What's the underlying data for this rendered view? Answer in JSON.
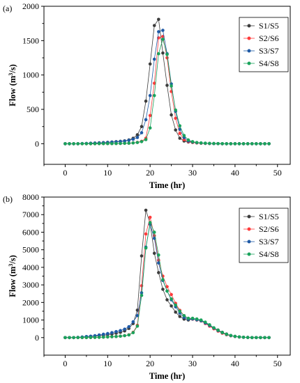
{
  "chart_data": [
    {
      "type": "line",
      "panel_label": "(a)",
      "xlabel": "Time (hr)",
      "ylabel_main": "Flow (m",
      "ylabel_sup": "3",
      "ylabel_end": "/s)",
      "xlim": [
        -5,
        53
      ],
      "ylim": [
        -300,
        2000
      ],
      "xticks": [
        0,
        10,
        20,
        30,
        40,
        50
      ],
      "yticks": [
        0,
        500,
        1000,
        1500,
        2000
      ],
      "xtick_labels": [
        "0",
        "10",
        "20",
        "30",
        "40",
        "50"
      ],
      "ytick_labels": [
        "0",
        "500",
        "1000",
        "1500",
        "2000"
      ],
      "legend_position": "top-right",
      "x": [
        0,
        1,
        2,
        3,
        4,
        5,
        6,
        7,
        8,
        9,
        10,
        11,
        12,
        13,
        14,
        15,
        16,
        17,
        18,
        19,
        20,
        21,
        22,
        23,
        24,
        25,
        26,
        27,
        28,
        29,
        30,
        31,
        32,
        33,
        34,
        35,
        36,
        37,
        38,
        39,
        40,
        41,
        42,
        43,
        44,
        45,
        46,
        47,
        48
      ],
      "series": [
        {
          "name": "S1/S5",
          "color": "#3c3c3c",
          "values": [
            0,
            0,
            0,
            0,
            2,
            4,
            7,
            10,
            13,
            16,
            20,
            25,
            30,
            35,
            42,
            55,
            80,
            130,
            250,
            620,
            1160,
            1720,
            1810,
            1320,
            850,
            420,
            200,
            80,
            40,
            25,
            18,
            12,
            8,
            5,
            3,
            2,
            1,
            0,
            0,
            0,
            0,
            0,
            0,
            0,
            0,
            0,
            0,
            0,
            0
          ]
        },
        {
          "name": "S2/S6",
          "color": "#ff3b3b",
          "values": [
            0,
            0,
            0,
            0,
            0,
            0,
            0,
            0,
            1,
            1,
            2,
            2,
            3,
            4,
            6,
            8,
            12,
            20,
            35,
            80,
            410,
            880,
            1540,
            1560,
            1250,
            760,
            370,
            150,
            60,
            30,
            20,
            12,
            8,
            5,
            3,
            2,
            1,
            0,
            0,
            0,
            0,
            0,
            0,
            0,
            0,
            0,
            0,
            0,
            0
          ]
        },
        {
          "name": "S3/S7",
          "color": "#1f5aa6",
          "values": [
            0,
            0,
            0,
            0,
            2,
            4,
            6,
            8,
            11,
            14,
            18,
            22,
            27,
            32,
            38,
            50,
            65,
            90,
            160,
            350,
            700,
            1230,
            1630,
            1650,
            1310,
            870,
            470,
            210,
            90,
            40,
            25,
            15,
            10,
            6,
            4,
            2,
            1,
            0,
            0,
            0,
            0,
            0,
            0,
            0,
            0,
            0,
            0,
            0,
            0
          ]
        },
        {
          "name": "S4/S8",
          "color": "#1aa35c",
          "values": [
            0,
            0,
            0,
            0,
            0,
            0,
            0,
            0,
            1,
            1,
            2,
            2,
            3,
            4,
            6,
            8,
            11,
            18,
            30,
            60,
            230,
            700,
            1310,
            1520,
            1300,
            840,
            490,
            260,
            120,
            55,
            30,
            18,
            12,
            8,
            5,
            3,
            2,
            1,
            0,
            0,
            0,
            0,
            0,
            0,
            0,
            0,
            0,
            0,
            0
          ]
        }
      ]
    },
    {
      "type": "line",
      "panel_label": "(b)",
      "xlabel": "Time (hr)",
      "ylabel_main": "Flow (m",
      "ylabel_sup": "3",
      "ylabel_end": "/s)",
      "xlim": [
        -5,
        53
      ],
      "ylim": [
        -1000,
        8000
      ],
      "xticks": [
        0,
        10,
        20,
        30,
        40,
        50
      ],
      "yticks": [
        0,
        1000,
        2000,
        3000,
        4000,
        5000,
        6000,
        7000,
        8000
      ],
      "xtick_labels": [
        "0",
        "10",
        "20",
        "30",
        "40",
        "50"
      ],
      "ytick_labels": [
        "0",
        "1000",
        "2000",
        "3000",
        "4000",
        "5000",
        "6000",
        "7000",
        "8000"
      ],
      "legend_position": "top-right",
      "x": [
        0,
        1,
        2,
        3,
        4,
        5,
        6,
        7,
        8,
        9,
        10,
        11,
        12,
        13,
        14,
        15,
        16,
        17,
        18,
        19,
        20,
        21,
        22,
        23,
        24,
        25,
        26,
        27,
        28,
        29,
        30,
        31,
        32,
        33,
        34,
        35,
        36,
        37,
        38,
        39,
        40,
        41,
        42,
        43,
        44,
        45,
        46,
        47,
        48
      ],
      "series": [
        {
          "name": "S1/S5",
          "color": "#3c3c3c",
          "values": [
            0,
            0,
            0,
            10,
            30,
            50,
            60,
            80,
            110,
            130,
            160,
            200,
            250,
            300,
            380,
            520,
            800,
            1560,
            4650,
            7250,
            6500,
            4800,
            3700,
            2750,
            2150,
            1800,
            1450,
            1200,
            1050,
            1000,
            1050,
            1000,
            950,
            850,
            700,
            550,
            430,
            300,
            200,
            120,
            70,
            40,
            20,
            10,
            0,
            0,
            0,
            0,
            0
          ]
        },
        {
          "name": "S2/S6",
          "color": "#ff3b3b",
          "values": [
            0,
            0,
            0,
            0,
            0,
            0,
            5,
            10,
            15,
            25,
            35,
            50,
            60,
            80,
            110,
            160,
            300,
            700,
            2950,
            5900,
            6850,
            5800,
            4400,
            3500,
            2900,
            2450,
            1950,
            1550,
            1250,
            1080,
            1050,
            1000,
            950,
            800,
            650,
            500,
            370,
            250,
            160,
            100,
            60,
            30,
            15,
            5,
            0,
            0,
            0,
            0,
            0
          ]
        },
        {
          "name": "S3/S7",
          "color": "#1f5aa6",
          "values": [
            0,
            0,
            0,
            10,
            30,
            60,
            80,
            110,
            150,
            190,
            230,
            280,
            340,
            400,
            480,
            620,
            900,
            1250,
            2550,
            5150,
            6450,
            5650,
            4250,
            3250,
            2650,
            2150,
            1750,
            1400,
            1150,
            1050,
            1060,
            1010,
            960,
            830,
            690,
            540,
            400,
            280,
            180,
            110,
            65,
            35,
            18,
            8,
            0,
            0,
            0,
            0,
            0
          ]
        },
        {
          "name": "S4/S8",
          "color": "#1aa35c",
          "values": [
            0,
            0,
            0,
            0,
            0,
            0,
            5,
            10,
            15,
            25,
            35,
            50,
            60,
            80,
            110,
            150,
            280,
            650,
            2400,
            5100,
            6550,
            6000,
            4700,
            3300,
            2650,
            2200,
            1850,
            1500,
            1250,
            1100,
            1100,
            1060,
            1000,
            880,
            730,
            560,
            420,
            290,
            190,
            120,
            70,
            40,
            20,
            8,
            0,
            0,
            0,
            0,
            0
          ]
        }
      ]
    }
  ]
}
